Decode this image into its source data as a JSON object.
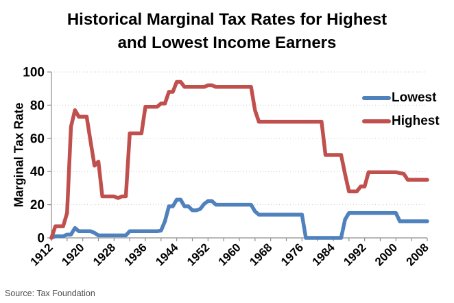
{
  "title": {
    "line1": "Historical Marginal Tax Rates for Highest",
    "line2": "and Lowest Income Earners"
  },
  "source": "Source: Tax Foundation",
  "legend": {
    "items": [
      {
        "label": "Lowest",
        "color": "#4F81BD"
      },
      {
        "label": "Highest",
        "color": "#C0504D"
      }
    ]
  },
  "colors": {
    "grid": "#C9C9C9",
    "axis": "#8E8E8E",
    "text": "#000000",
    "source_text": "#4D4D4D",
    "lowest_line": "#4F81BD",
    "highest_line": "#C0504D"
  },
  "chart_data": {
    "type": "line",
    "title": "Historical Marginal Tax Rates for Highest and Lowest Income Earners",
    "xlabel": "",
    "ylabel": "Marginal Tax Rate",
    "ylim": [
      0,
      100
    ],
    "y_ticks": [
      0,
      20,
      40,
      60,
      80,
      100
    ],
    "x_tick_labels": [
      "1912",
      "1920",
      "1928",
      "1936",
      "1944",
      "1952",
      "1960",
      "1968",
      "1976",
      "1984",
      "1992",
      "2000",
      "2008"
    ],
    "x_minor_tick_step": 4,
    "grid": "horizontal-dotted",
    "legend_position": "inside-top-right",
    "line_width": 5.5,
    "years": [
      1912,
      1913,
      1914,
      1915,
      1916,
      1917,
      1918,
      1919,
      1920,
      1921,
      1922,
      1923,
      1924,
      1925,
      1926,
      1927,
      1928,
      1929,
      1930,
      1931,
      1932,
      1933,
      1934,
      1935,
      1936,
      1937,
      1938,
      1939,
      1940,
      1941,
      1942,
      1943,
      1944,
      1945,
      1946,
      1947,
      1948,
      1949,
      1950,
      1951,
      1952,
      1953,
      1954,
      1955,
      1956,
      1957,
      1958,
      1959,
      1960,
      1961,
      1962,
      1963,
      1964,
      1965,
      1966,
      1967,
      1968,
      1969,
      1970,
      1971,
      1972,
      1973,
      1974,
      1975,
      1976,
      1977,
      1978,
      1979,
      1980,
      1981,
      1982,
      1983,
      1984,
      1985,
      1986,
      1987,
      1988,
      1989,
      1990,
      1991,
      1992,
      1993,
      1994,
      1995,
      1996,
      1997,
      1998,
      1999,
      2000,
      2001,
      2002,
      2003,
      2004,
      2005,
      2006,
      2007,
      2008
    ],
    "series": [
      {
        "name": "Lowest",
        "color": "#4F81BD",
        "values": [
          0,
          1,
          1,
          1,
          2,
          2,
          6,
          4,
          4,
          4,
          4,
          3,
          1.5,
          1.5,
          1.5,
          1.5,
          1.5,
          1.5,
          1.5,
          1.5,
          4,
          4,
          4,
          4,
          4,
          4,
          4,
          4,
          4.4,
          10,
          19,
          19,
          23,
          23,
          19,
          19,
          16.6,
          16.6,
          17.4,
          20.4,
          22.2,
          22.2,
          20,
          20,
          20,
          20,
          20,
          20,
          20,
          20,
          20,
          20,
          16,
          14,
          14,
          14,
          14,
          14,
          14,
          14,
          14,
          14,
          14,
          14,
          14,
          0,
          0,
          0,
          0,
          0,
          0,
          0,
          0,
          0,
          0,
          11,
          15,
          15,
          15,
          15,
          15,
          15,
          15,
          15,
          15,
          15,
          15,
          15,
          15,
          10,
          10,
          10,
          10,
          10,
          10,
          10,
          10
        ]
      },
      {
        "name": "Highest",
        "color": "#C0504D",
        "values": [
          0,
          7,
          7,
          7,
          15,
          67,
          77,
          73,
          73,
          73,
          58,
          43.5,
          46,
          25,
          25,
          25,
          25,
          24,
          25,
          25,
          63,
          63,
          63,
          63,
          79,
          79,
          79,
          79,
          81,
          81,
          88,
          88,
          94,
          94,
          91,
          91,
          91,
          91,
          91,
          91,
          92,
          92,
          91,
          91,
          91,
          91,
          91,
          91,
          91,
          91,
          91,
          91,
          77,
          70,
          70,
          70,
          70,
          70,
          70,
          70,
          70,
          70,
          70,
          70,
          70,
          70,
          70,
          70,
          70,
          70,
          50,
          50,
          50,
          50,
          50,
          38.5,
          28,
          28,
          28,
          31,
          31,
          39.6,
          39.6,
          39.6,
          39.6,
          39.6,
          39.6,
          39.6,
          39.6,
          39.1,
          38.6,
          35,
          35,
          35,
          35,
          35,
          35
        ]
      }
    ]
  }
}
